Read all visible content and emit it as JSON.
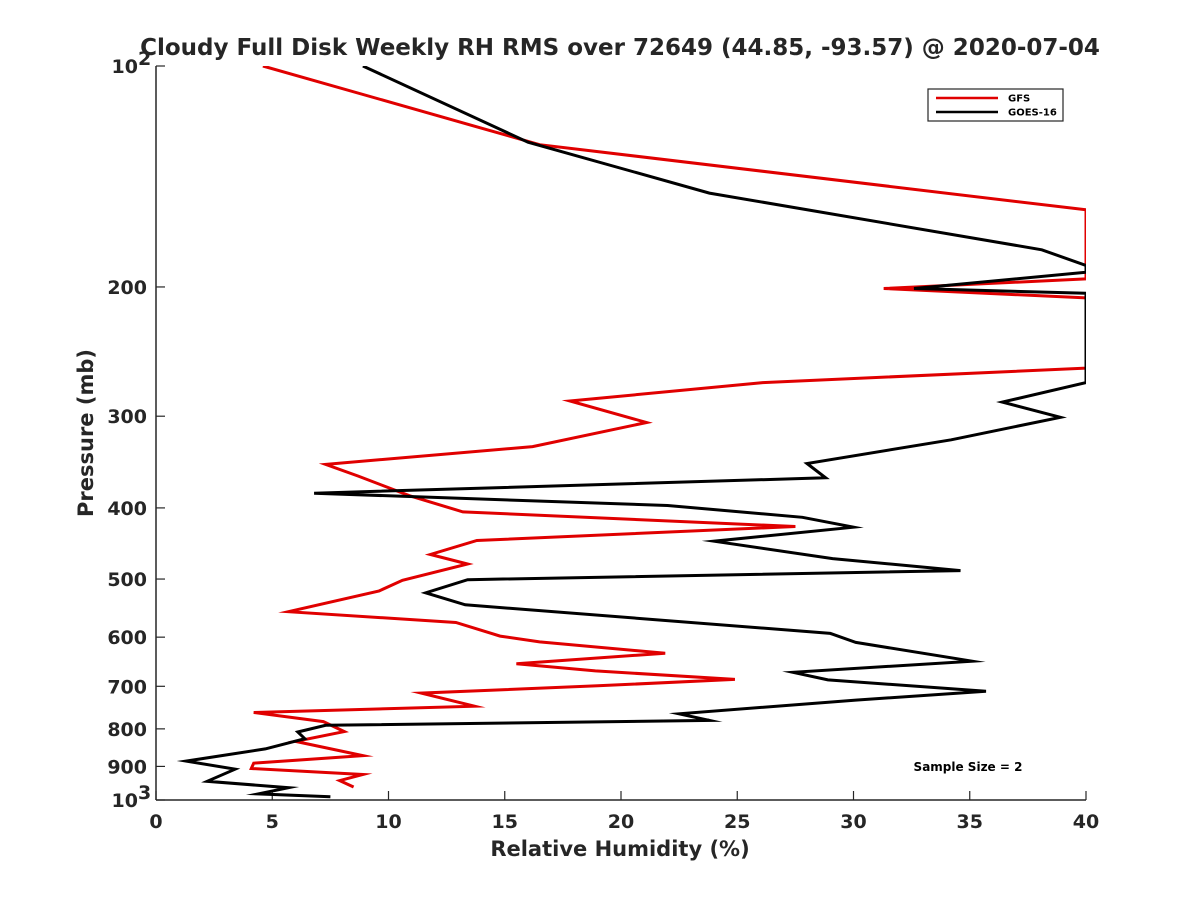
{
  "chart_data": {
    "type": "line",
    "title": "Cloudy Full Disk Weekly RH RMS over 72649 (44.85, -93.57) @ 2020-07-04",
    "xlabel": "Relative Humidity (%)",
    "ylabel": "Pressure (mb)",
    "xlim": [
      0,
      40
    ],
    "ylim": [
      100,
      1000
    ],
    "y_scale": "log",
    "y_reversed": true,
    "x_ticks": [
      "0",
      "5",
      "10",
      "15",
      "20",
      "25",
      "30",
      "35",
      "40"
    ],
    "y_ticks": [
      {
        "value": 100,
        "base": "10",
        "exp": "2"
      },
      {
        "value": 200,
        "label": "200"
      },
      {
        "value": 300,
        "label": "300"
      },
      {
        "value": 400,
        "label": "400"
      },
      {
        "value": 500,
        "label": "500"
      },
      {
        "value": 600,
        "label": "600"
      },
      {
        "value": 700,
        "label": "700"
      },
      {
        "value": 800,
        "label": "800"
      },
      {
        "value": 900,
        "label": "900"
      },
      {
        "value": 1000,
        "base": "10",
        "exp": "3"
      }
    ],
    "legend_position": "top-right",
    "annotation": "Sample Size = 2",
    "series": [
      {
        "name": "GFS",
        "color": "#e00000",
        "points": [
          [
            4.6,
            100
          ],
          [
            16.5,
            128
          ],
          [
            40,
            157
          ],
          [
            40,
            195
          ],
          [
            31.3,
            201
          ],
          [
            40,
            207
          ],
          [
            40,
            258
          ],
          [
            26.1,
            270
          ],
          [
            17.8,
            286
          ],
          [
            21.1,
            306
          ],
          [
            16.2,
            330
          ],
          [
            7.3,
            349
          ],
          [
            8.7,
            362
          ],
          [
            10.9,
            385
          ],
          [
            13.2,
            405
          ],
          [
            27.5,
            424
          ],
          [
            13.8,
            443
          ],
          [
            11.8,
            463
          ],
          [
            13.4,
            477
          ],
          [
            10.6,
            502
          ],
          [
            9.6,
            519
          ],
          [
            5.7,
            554
          ],
          [
            12.9,
            573
          ],
          [
            14.8,
            598
          ],
          [
            16.5,
            609
          ],
          [
            21.9,
            631
          ],
          [
            15.5,
            652
          ],
          [
            18.9,
            667
          ],
          [
            24.9,
            685
          ],
          [
            19.0,
            699
          ],
          [
            11.4,
            715
          ],
          [
            13.7,
            745
          ],
          [
            4.2,
            760
          ],
          [
            7.2,
            782
          ],
          [
            8.1,
            807
          ],
          [
            6.0,
            832
          ],
          [
            8.9,
            870
          ],
          [
            4.2,
            891
          ],
          [
            4.1,
            906
          ],
          [
            8.9,
            923
          ],
          [
            7.9,
            941
          ],
          [
            8.5,
            960
          ]
        ]
      },
      {
        "name": "GOES-16",
        "color": "#000000",
        "points": [
          [
            8.9,
            100
          ],
          [
            16.0,
            127
          ],
          [
            23.8,
            149
          ],
          [
            38.1,
            178
          ],
          [
            40,
            187
          ],
          [
            40,
            191
          ],
          [
            32.6,
            201
          ],
          [
            40,
            204
          ],
          [
            40,
            270
          ],
          [
            36.4,
            287
          ],
          [
            38.9,
            301
          ],
          [
            34.2,
            323
          ],
          [
            28.0,
            348
          ],
          [
            28.8,
            364
          ],
          [
            6.8,
            382
          ],
          [
            22.0,
            397
          ],
          [
            27.8,
            412
          ],
          [
            30.0,
            425
          ],
          [
            24.0,
            444
          ],
          [
            29.1,
            469
          ],
          [
            34.6,
            487
          ],
          [
            13.4,
            501
          ],
          [
            11.6,
            522
          ],
          [
            13.3,
            542
          ],
          [
            29.0,
            593
          ],
          [
            30.1,
            610
          ],
          [
            35.1,
            647
          ],
          [
            27.4,
            670
          ],
          [
            28.9,
            686
          ],
          [
            35.7,
            711
          ],
          [
            30.1,
            731
          ],
          [
            22.5,
            763
          ],
          [
            23.8,
            779
          ],
          [
            7.3,
            791
          ],
          [
            6.1,
            808
          ],
          [
            6.4,
            825
          ],
          [
            4.7,
            852
          ],
          [
            1.3,
            885
          ],
          [
            3.4,
            908
          ],
          [
            2.2,
            943
          ],
          [
            5.7,
            962
          ],
          [
            4.4,
            981
          ],
          [
            7.5,
            990
          ]
        ]
      }
    ]
  }
}
